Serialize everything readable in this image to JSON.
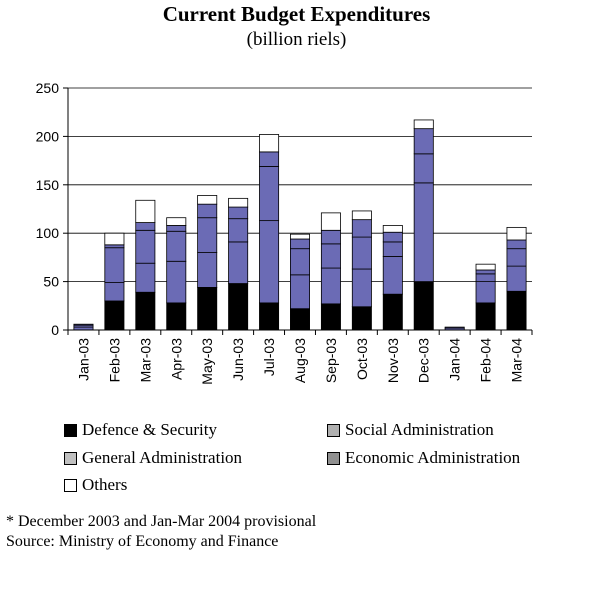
{
  "chart_data": {
    "type": "bar",
    "stacked": true,
    "title": "Current Budget Expenditures",
    "subtitle": "(billion riels)",
    "categories": [
      "Jan-03",
      "Feb-03",
      "Mar-03",
      "Apr-03",
      "May-03",
      "Jun-03",
      "Jul-03",
      "Aug-03",
      "Sep-03",
      "Oct-03",
      "Nov-03",
      "Dec-03",
      "Jan-04",
      "Feb-04",
      "Mar-04"
    ],
    "ylim": [
      0,
      250
    ],
    "yticks": [
      0,
      50,
      100,
      150,
      200,
      250
    ],
    "grid": true,
    "series": [
      {
        "name": "Defence & Security",
        "color": "#000000",
        "values": [
          0,
          30,
          39,
          28,
          44,
          48,
          28,
          22,
          27,
          24,
          37,
          50,
          0,
          28,
          40
        ]
      },
      {
        "name": "Social Administration",
        "color": "#6b6bb5",
        "values": [
          3,
          19,
          30,
          43,
          36,
          43,
          85,
          35,
          37,
          39,
          39,
          102,
          2,
          22,
          26
        ]
      },
      {
        "name": "General Administration",
        "color": "#6b6bb5",
        "values": [
          2,
          36,
          34,
          31,
          36,
          24,
          56,
          27,
          25,
          33,
          15,
          30,
          1,
          8,
          18
        ]
      },
      {
        "name": "Economic Administration",
        "color": "#6b6bb5",
        "values": [
          1,
          3,
          8,
          6,
          14,
          12,
          15,
          10,
          14,
          18,
          10,
          26,
          0,
          4,
          9
        ]
      },
      {
        "name": "Others",
        "color": "#ffffff",
        "values": [
          0,
          12,
          23,
          8,
          9,
          9,
          18,
          5,
          18,
          9,
          7,
          9,
          0,
          6,
          13
        ]
      }
    ],
    "legend_position": "bottom"
  },
  "legend": {
    "defence": "Defence & Security",
    "social": "Social Administration",
    "general": "General Administration",
    "economic": "Economic Administration",
    "others": "Others"
  },
  "notes": {
    "provisional": "* December 2003 and Jan-Mar 2004 provisional",
    "source": "Source: Ministry of Economy and Finance"
  }
}
